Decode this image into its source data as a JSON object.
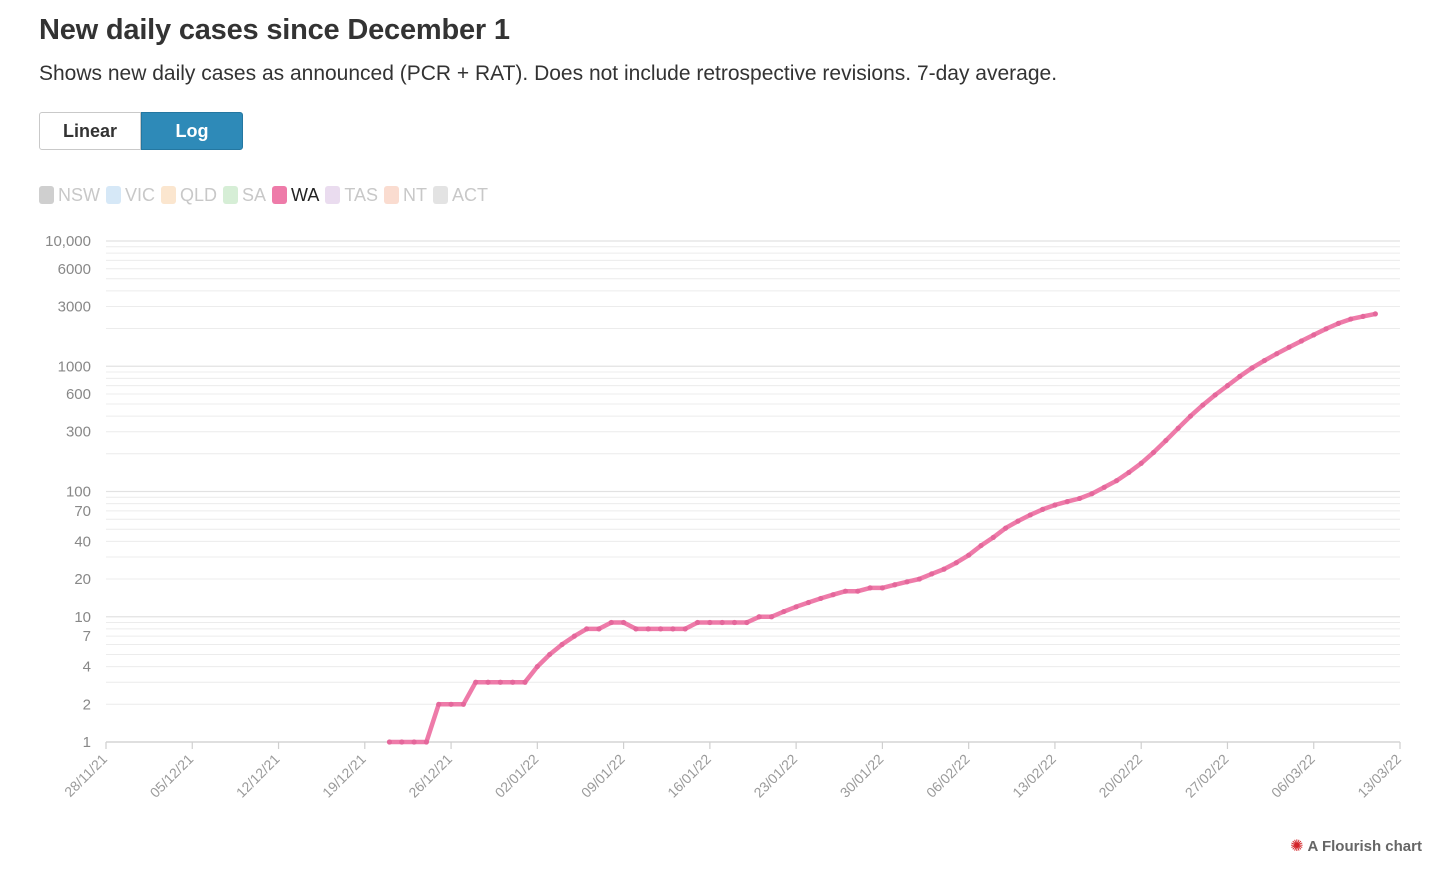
{
  "header": {
    "title": "New daily cases since December 1",
    "subtitle": "Shows new daily cases as announced (PCR + RAT). Does not include retrospective revisions. 7-day average."
  },
  "toggle": {
    "linear_label": "Linear",
    "log_label": "Log",
    "selected": "Log"
  },
  "legend": {
    "items": [
      {
        "label": "NSW",
        "color": "#cfcfcf",
        "active": false
      },
      {
        "label": "VIC",
        "color": "#d6e8f7",
        "active": false
      },
      {
        "label": "QLD",
        "color": "#fbe6cf",
        "active": false
      },
      {
        "label": "SA",
        "color": "#d6eed6",
        "active": false
      },
      {
        "label": "WA",
        "color": "#ee7ba9",
        "active": true
      },
      {
        "label": "TAS",
        "color": "#eadcef",
        "active": false
      },
      {
        "label": "NT",
        "color": "#fadcd0",
        "active": false
      },
      {
        "label": "ACT",
        "color": "#e3e3e3",
        "active": false
      }
    ]
  },
  "credit": {
    "text": "A Flourish chart",
    "icon": "flourish-logo-icon"
  },
  "chart_data": {
    "type": "line",
    "title": "New daily cases since December 1",
    "y_scale": "log",
    "ylim": [
      1,
      10000
    ],
    "xlim": [
      "28/11/21",
      "13/03/22"
    ],
    "y_ticks": [
      "10,000",
      "6000",
      "3000",
      "1000",
      "600",
      "300",
      "100",
      "70",
      "40",
      "20",
      "10",
      "7",
      "4",
      "2",
      "1"
    ],
    "y_tick_values": [
      10000,
      6000,
      3000,
      1000,
      600,
      300,
      100,
      70,
      40,
      20,
      10,
      7,
      4,
      2,
      1
    ],
    "x_ticks": [
      "28/11/21",
      "05/12/21",
      "12/12/21",
      "19/12/21",
      "26/12/21",
      "02/01/22",
      "09/01/22",
      "16/01/22",
      "23/01/22",
      "30/01/22",
      "06/02/22",
      "13/02/22",
      "20/02/22",
      "27/02/22",
      "06/03/22",
      "13/03/22"
    ],
    "grid": true,
    "line_color": "#ee7ba9",
    "series": [
      {
        "name": "WA",
        "points": [
          [
            "2021-12-21",
            1
          ],
          [
            "2021-12-22",
            1
          ],
          [
            "2021-12-23",
            1
          ],
          [
            "2021-12-24",
            1
          ],
          [
            "2021-12-25",
            2
          ],
          [
            "2021-12-26",
            2
          ],
          [
            "2021-12-27",
            2
          ],
          [
            "2021-12-28",
            3
          ],
          [
            "2021-12-29",
            3
          ],
          [
            "2021-12-30",
            3
          ],
          [
            "2021-12-31",
            3
          ],
          [
            "2022-01-01",
            3
          ],
          [
            "2022-01-02",
            4
          ],
          [
            "2022-01-03",
            5
          ],
          [
            "2022-01-04",
            6
          ],
          [
            "2022-01-05",
            7
          ],
          [
            "2022-01-06",
            8
          ],
          [
            "2022-01-07",
            8
          ],
          [
            "2022-01-08",
            9
          ],
          [
            "2022-01-09",
            9
          ],
          [
            "2022-01-10",
            8
          ],
          [
            "2022-01-11",
            8
          ],
          [
            "2022-01-12",
            8
          ],
          [
            "2022-01-13",
            8
          ],
          [
            "2022-01-14",
            8
          ],
          [
            "2022-01-15",
            9
          ],
          [
            "2022-01-16",
            9
          ],
          [
            "2022-01-17",
            9
          ],
          [
            "2022-01-18",
            9
          ],
          [
            "2022-01-19",
            9
          ],
          [
            "2022-01-20",
            10
          ],
          [
            "2022-01-21",
            10
          ],
          [
            "2022-01-22",
            11
          ],
          [
            "2022-01-23",
            12
          ],
          [
            "2022-01-24",
            13
          ],
          [
            "2022-01-25",
            14
          ],
          [
            "2022-01-26",
            15
          ],
          [
            "2022-01-27",
            16
          ],
          [
            "2022-01-28",
            16
          ],
          [
            "2022-01-29",
            17
          ],
          [
            "2022-01-30",
            17
          ],
          [
            "2022-01-31",
            18
          ],
          [
            "2022-02-01",
            19
          ],
          [
            "2022-02-02",
            20
          ],
          [
            "2022-02-03",
            22
          ],
          [
            "2022-02-04",
            24
          ],
          [
            "2022-02-05",
            27
          ],
          [
            "2022-02-06",
            31
          ],
          [
            "2022-02-07",
            37
          ],
          [
            "2022-02-08",
            43
          ],
          [
            "2022-02-09",
            51
          ],
          [
            "2022-02-10",
            58
          ],
          [
            "2022-02-11",
            65
          ],
          [
            "2022-02-12",
            72
          ],
          [
            "2022-02-13",
            78
          ],
          [
            "2022-02-14",
            83
          ],
          [
            "2022-02-15",
            88
          ],
          [
            "2022-02-16",
            96
          ],
          [
            "2022-02-17",
            108
          ],
          [
            "2022-02-18",
            122
          ],
          [
            "2022-02-19",
            142
          ],
          [
            "2022-02-20",
            168
          ],
          [
            "2022-02-21",
            205
          ],
          [
            "2022-02-22",
            255
          ],
          [
            "2022-02-23",
            320
          ],
          [
            "2022-02-24",
            400
          ],
          [
            "2022-02-25",
            490
          ],
          [
            "2022-02-26",
            590
          ],
          [
            "2022-02-27",
            700
          ],
          [
            "2022-02-28",
            830
          ],
          [
            "2022-03-01",
            970
          ],
          [
            "2022-03-02",
            1110
          ],
          [
            "2022-03-03",
            1260
          ],
          [
            "2022-03-04",
            1420
          ],
          [
            "2022-03-05",
            1590
          ],
          [
            "2022-03-06",
            1780
          ],
          [
            "2022-03-07",
            1990
          ],
          [
            "2022-03-08",
            2200
          ],
          [
            "2022-03-09",
            2380
          ],
          [
            "2022-03-10",
            2500
          ],
          [
            "2022-03-11",
            2620
          ]
        ]
      }
    ]
  }
}
